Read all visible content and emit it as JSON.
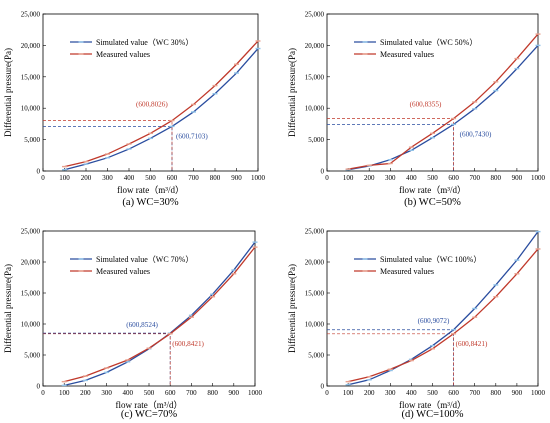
{
  "colors": {
    "simulated": "#2a4d9f",
    "measured": "#c0392b",
    "simulated_marker": "#8fc1e8",
    "measured_marker": "#e8a18f"
  },
  "chart_data": [
    {
      "type": "line",
      "caption": "(a) WC=30%",
      "xlabel": "flow rate（m³/d）",
      "ylabel": "Differential pressure(Pa)",
      "x": [
        100,
        200,
        300,
        400,
        500,
        600,
        700,
        800,
        900,
        1000
      ],
      "xlim": [
        0,
        1000
      ],
      "ylim": [
        0,
        25000
      ],
      "xticks": [
        "0",
        "100",
        "200",
        "300",
        "400",
        "500",
        "600",
        "700",
        "800",
        "900",
        "1000"
      ],
      "yticks": [
        "0",
        "5,000",
        "10,000",
        "15,000",
        "20,000",
        "25,000"
      ],
      "series": [
        {
          "name": "Simulated value（WC 30%）",
          "values": [
            200,
            1100,
            2100,
            3500,
            5200,
            7103,
            9400,
            12300,
            15600,
            19500
          ]
        },
        {
          "name": "Measured values",
          "values": [
            700,
            1500,
            2700,
            4300,
            6000,
            8026,
            10600,
            13600,
            17000,
            20700
          ]
        }
      ],
      "annotations": [
        {
          "text": "(600,8026)",
          "series": 1
        },
        {
          "text": "(600,7103)",
          "series": 0
        }
      ],
      "legend": "upper-left",
      "grid": false
    },
    {
      "type": "line",
      "caption": "(b) WC=50%",
      "xlabel": "flow rate（m³/d）",
      "ylabel": "Differential pressure(Pa)",
      "x": [
        100,
        200,
        300,
        400,
        500,
        600,
        700,
        800,
        900,
        1000
      ],
      "xlim": [
        0,
        1000
      ],
      "ylim": [
        0,
        25000
      ],
      "xticks": [
        "0",
        "100",
        "200",
        "300",
        "400",
        "500",
        "600",
        "700",
        "800",
        "900",
        "1000"
      ],
      "yticks": [
        "0",
        "5,000",
        "10,000",
        "15,000",
        "20,000",
        "25,000"
      ],
      "series": [
        {
          "name": "Simulated value（WC 50%）",
          "values": [
            200,
            800,
            1800,
            3300,
            5300,
            7430,
            9900,
            12800,
            16300,
            20000
          ]
        },
        {
          "name": "Measured values",
          "values": [
            300,
            900,
            1200,
            3800,
            6000,
            8355,
            11000,
            14200,
            17900,
            21800
          ]
        }
      ],
      "annotations": [
        {
          "text": "(600,8355)",
          "series": 1
        },
        {
          "text": "(600,7430)",
          "series": 0
        }
      ],
      "legend": "upper-left",
      "grid": false
    },
    {
      "type": "line",
      "caption": "(c) WC=70%",
      "xlabel": "flow rate（m³/d）",
      "ylabel": "Differential pressure(Pa)",
      "x": [
        100,
        200,
        300,
        400,
        500,
        600,
        700,
        800,
        900,
        1000
      ],
      "xlim": [
        0,
        1000
      ],
      "ylim": [
        0,
        25000
      ],
      "xticks": [
        "0",
        "100",
        "200",
        "300",
        "400",
        "500",
        "600",
        "700",
        "800",
        "900",
        "1000"
      ],
      "yticks": [
        "0",
        "5,000",
        "10,000",
        "15,000",
        "20,000",
        "25,000"
      ],
      "series": [
        {
          "name": "Simulated value（WC 70%）",
          "values": [
            100,
            900,
            2200,
            3900,
            6000,
            8524,
            11400,
            14800,
            18700,
            23200
          ]
        },
        {
          "name": "Measured values",
          "values": [
            700,
            1600,
            2900,
            4200,
            6100,
            8421,
            11100,
            14400,
            18100,
            22400
          ]
        }
      ],
      "annotations": [
        {
          "text": "(600,8524)",
          "series": 0
        },
        {
          "text": "(600,8421)",
          "series": 1
        }
      ],
      "legend": "upper-left",
      "grid": false
    },
    {
      "type": "line",
      "caption": "(d) WC=100%",
      "xlabel": "flow rate（m³/d）",
      "ylabel": "Differential pressure(Pa)",
      "x": [
        100,
        200,
        300,
        400,
        500,
        600,
        700,
        800,
        900,
        1000
      ],
      "xlim": [
        0,
        1000
      ],
      "ylim": [
        0,
        25000
      ],
      "xticks": [
        "0",
        "100",
        "200",
        "300",
        "400",
        "500",
        "600",
        "700",
        "800",
        "900",
        "1000"
      ],
      "yticks": [
        "0",
        "5,000",
        "10,000",
        "15,000",
        "20,000",
        "25,000"
      ],
      "series": [
        {
          "name": "Simulated value（WC 100%）",
          "values": [
            200,
            1000,
            2500,
            4300,
            6500,
            9072,
            12500,
            16300,
            20300,
            24900
          ]
        },
        {
          "name": "Measured values",
          "values": [
            700,
            1500,
            2700,
            4100,
            6000,
            8421,
            11100,
            14400,
            18100,
            22100
          ]
        }
      ],
      "annotations": [
        {
          "text": "(600,9072)",
          "series": 0
        },
        {
          "text": "(600,8421)",
          "series": 1
        }
      ],
      "legend": "upper-left",
      "grid": false
    }
  ]
}
